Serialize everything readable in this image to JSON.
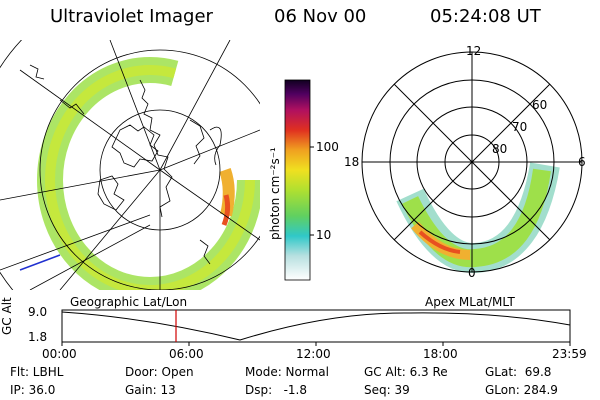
{
  "header": {
    "title": "Ultraviolet Imager",
    "date": "06 Nov 00",
    "time": "05:24:08 UT"
  },
  "colorbar": {
    "unit_label": "photon cm⁻²s⁻¹",
    "ticks": [
      "100",
      "10"
    ]
  },
  "polar_plot": {
    "mlt_labels": [
      "12",
      "18",
      "6",
      "0"
    ],
    "mlat_labels": [
      "60",
      "70",
      "80"
    ]
  },
  "panel_labels": {
    "left": "Geographic Lat/Lon",
    "right": "Apex MLat/MLT"
  },
  "altitude_plot": {
    "ylabel": "GC Alt",
    "yticks": [
      "9.0",
      "1.8"
    ],
    "xticks": [
      "00:00",
      "06:00",
      "12:00",
      "18:00",
      "23:59"
    ],
    "marker_time": "05:24"
  },
  "info": {
    "flt": "Flt: LBHL",
    "ip": "IP: 36.0",
    "door": "Door: Open",
    "gain": "Gain: 13",
    "mode": "Mode: Normal",
    "dsp": "Dsp:   -1.8",
    "gc_alt": "GC Alt: 6.3 Re",
    "seq": "Seq: 39",
    "glat": "GLat:  69.8",
    "glon": "GLon: 284.9"
  },
  "colors": {
    "marker": "#d00000",
    "aurora_low": "#7ad0b8",
    "aurora_mid": "#9ee04a",
    "aurora_high": "#f0b030"
  }
}
